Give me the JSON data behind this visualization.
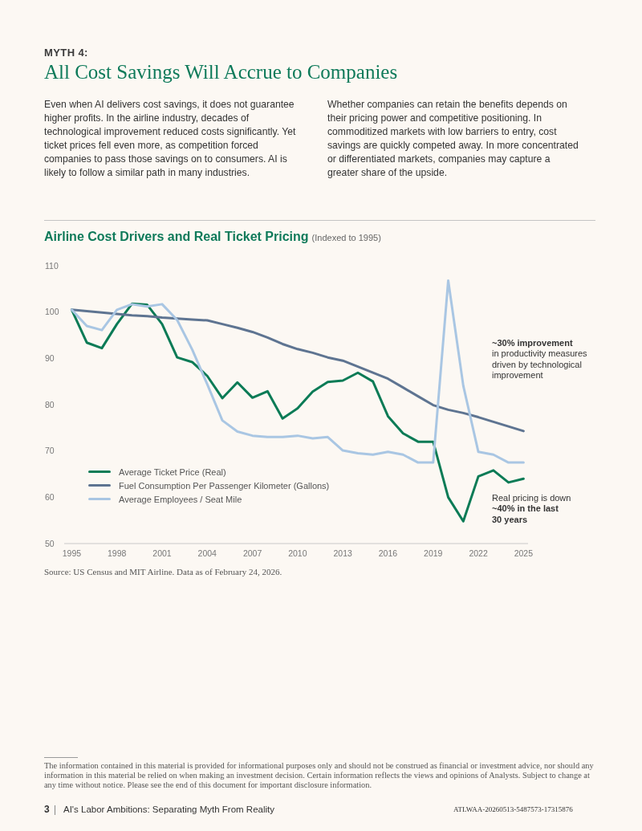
{
  "chart_data": {
    "type": "line",
    "title": "Airline Cost Drivers and Real Ticket Pricing",
    "subtitle": "(Indexed to 1995)",
    "annotations": [
      "MYTH 4:",
      "All Cost Savings Will Accrue to Companies",
      "Even when AI delivers cost savings, it does not guarantee higher profits. In the airline industry, decades of technological improvement reduced costs significantly. Yet ticket prices fell even more, as competition forced companies to pass those savings on to consumers. AI is likely to follow a similar path in many industries.",
      "Whether companies can retain the benefits depends on their pricing power and competitive positioning. In commoditized markets with low barriers to entry, cost savings are quickly competed away. In more concentrated or differentiated markets, companies may capture a greater share of the upside.",
      "~30% improvement",
      "in productivity measures driven by technological improvement",
      "Real pricing is down",
      "~40% in the last 30 years",
      "Source: US Census and MIT Airline. Data as of February 24, 2026.",
      "The information contained in this material is provided for informational purposes only and should not be construed as financial or investment advice, nor should any information in this material be relied on when making an investment decision. Certain information reflects the views and opinions of Analysts. Subject to change at any time without notice. Please see the end of this document for important disclosure information.",
      "3",
      "AI's Labor Ambitions: Separating Myth From Reality",
      "ATLWAA-20260513-5487573-17315876"
    ],
    "x": [
      1995,
      1996,
      1997,
      1998,
      1999,
      2000,
      2001,
      2002,
      2003,
      2004,
      2005,
      2006,
      2007,
      2008,
      2009,
      2010,
      2011,
      2012,
      2013,
      2014,
      2015,
      2016,
      2017,
      2018,
      2019,
      2020,
      2021,
      2022,
      2023,
      2024,
      2025
    ],
    "series": [
      {
        "name": "Average Ticket Price (Real)",
        "color": "#0b7b56",
        "values": [
          100.5,
          93.4,
          92.2,
          97.4,
          101.8,
          101.6,
          97.4,
          90.2,
          89.2,
          86.2,
          81.4,
          84.8,
          81.5,
          82.9,
          77.0,
          79.2,
          82.8,
          84.9,
          85.2,
          86.9,
          85.0,
          77.5,
          73.8,
          72.0,
          72.0,
          60.0,
          54.8,
          64.5,
          65.8,
          63.2,
          64.0
        ]
      },
      {
        "name": "Fuel Consumption Per Passenger Kilometer (Gallons)",
        "color": "#5e7491",
        "values": [
          100.5,
          100.2,
          99.9,
          99.6,
          99.3,
          99.1,
          98.8,
          98.6,
          98.4,
          98.2,
          97.4,
          96.6,
          95.7,
          94.5,
          93.1,
          92.0,
          91.2,
          90.2,
          89.5,
          88.2,
          86.9,
          85.6,
          83.7,
          81.8,
          79.9,
          78.9,
          78.2,
          77.3,
          76.3,
          75.3,
          74.3
        ]
      },
      {
        "name": "Average Employees / Seat Mile",
        "color": "#a9c6e3",
        "values": [
          100.5,
          97.0,
          96.1,
          100.5,
          101.7,
          101.2,
          101.7,
          98.3,
          91.9,
          84.4,
          76.6,
          74.2,
          73.3,
          73.0,
          73.0,
          73.3,
          72.7,
          73.0,
          70.1,
          69.5,
          69.2,
          69.8,
          69.2,
          67.5,
          67.5,
          106.8,
          84.1,
          69.8,
          69.2,
          67.5,
          67.5
        ]
      }
    ],
    "xlim": [
      1994.5,
      2025.3
    ],
    "xticks": [
      1995,
      1998,
      2001,
      2004,
      2007,
      2010,
      2013,
      2016,
      2019,
      2022,
      2025
    ],
    "ylim": [
      50,
      110
    ],
    "yticks": [
      50,
      60,
      70,
      80,
      90,
      100,
      110
    ],
    "legend": "bottom left",
    "marker": "none",
    "line_style": "solid"
  }
}
